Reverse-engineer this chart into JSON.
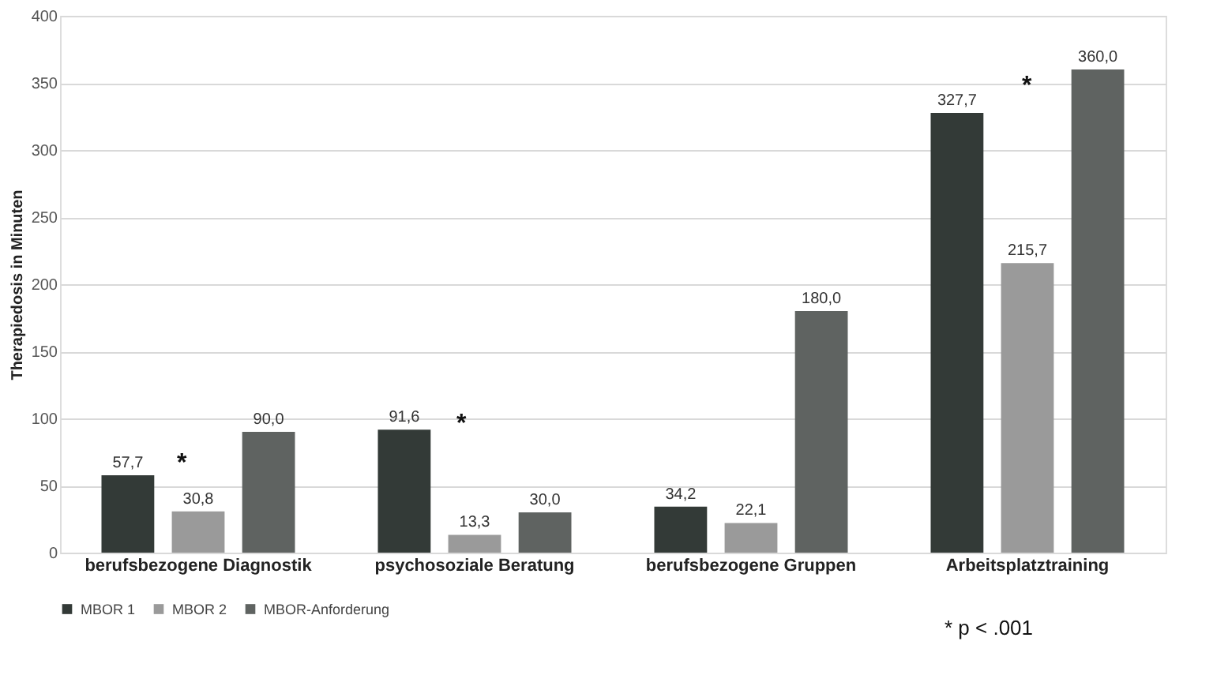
{
  "chart_data": {
    "type": "bar",
    "ylabel": "Therapiedosis in Minuten",
    "categories": [
      "berufsbezogene Diagnostik",
      "psychosoziale Beratung",
      "berufsbezogene Gruppen",
      "Arbeitsplatztraining"
    ],
    "series": [
      {
        "name": "MBOR 1",
        "color": "#333a37",
        "values": [
          57.7,
          91.6,
          34.2,
          327.7
        ],
        "value_labels": [
          "57,7",
          "91,6",
          "34,2",
          "327,7"
        ]
      },
      {
        "name": "MBOR 2",
        "color": "#9a9a9a",
        "values": [
          30.8,
          13.3,
          22.1,
          215.7
        ],
        "value_labels": [
          "30,8",
          "13,3",
          "22,1",
          "215,7"
        ]
      },
      {
        "name": "MBOR-Anforderung",
        "color": "#5f6361",
        "values": [
          90.0,
          30.0,
          180.0,
          360.0
        ],
        "value_labels": [
          "90,0",
          "30,0",
          "180,0",
          "360,0"
        ]
      }
    ],
    "ylim": [
      0,
      400
    ],
    "yticks": [
      0,
      50,
      100,
      150,
      200,
      250,
      300,
      350,
      400
    ],
    "grid": "y",
    "legend": "bottom",
    "annotations": [
      "*",
      "*",
      "*",
      "* p < .001"
    ]
  }
}
